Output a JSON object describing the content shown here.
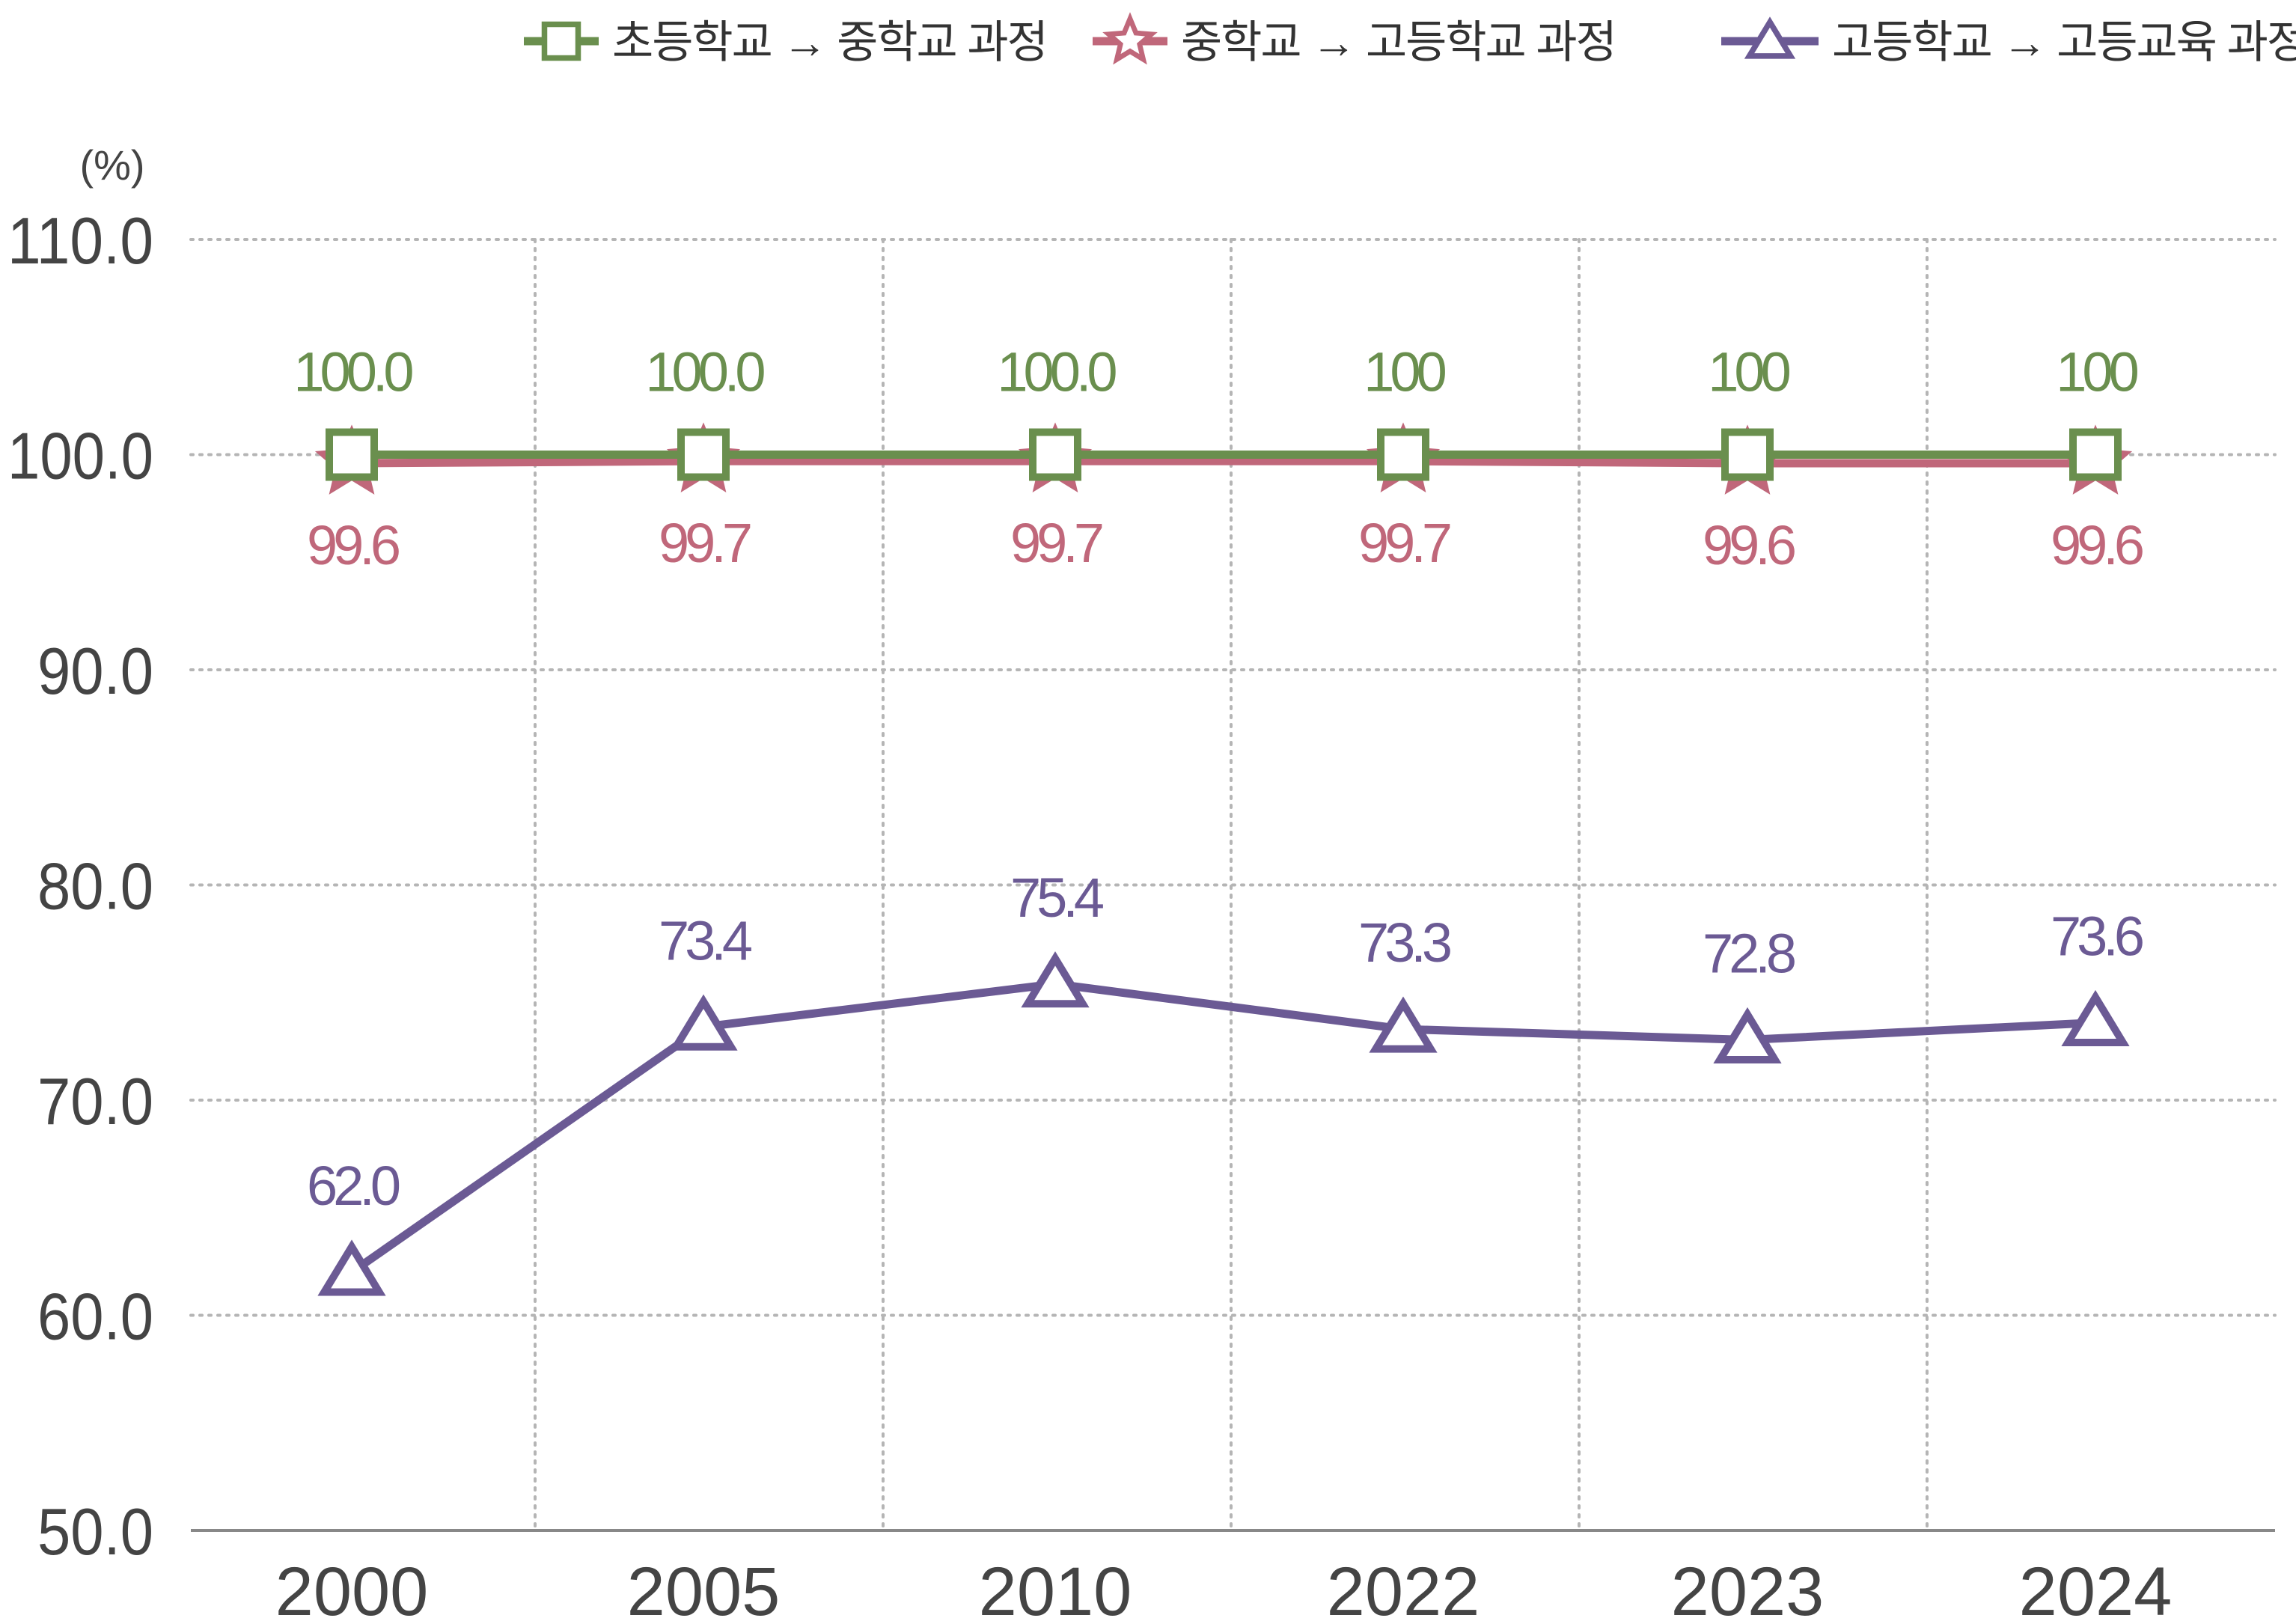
{
  "chart_data": {
    "type": "line",
    "unit_label": "(%)",
    "categories": [
      "2000",
      "2005",
      "2010",
      "2022",
      "2023",
      "2024"
    ],
    "ylim": [
      50.0,
      110.0
    ],
    "y_ticks": [
      "110.0",
      "100.0",
      "90.0",
      "80.0",
      "70.0",
      "60.0",
      "50.0"
    ],
    "y_tick_values": [
      110,
      100,
      90,
      80,
      70,
      60,
      50
    ],
    "grid": true,
    "legend_position": "top-right",
    "series": [
      {
        "name": "초등학교 → 중학교 과정",
        "color": "#6a8f4e",
        "marker": "square",
        "values": [
          100.0,
          100.0,
          100.0,
          100,
          100,
          100
        ],
        "labels": [
          "100.0",
          "100.0",
          "100.0",
          "100",
          "100",
          "100"
        ]
      },
      {
        "name": "중학교 → 고등학교 과정",
        "color": "#c0677a",
        "marker": "star",
        "values": [
          99.6,
          99.7,
          99.7,
          99.7,
          99.6,
          99.6
        ],
        "labels": [
          "99.6",
          "99.7",
          "99.7",
          "99.7",
          "99.6",
          "99.6"
        ]
      },
      {
        "name": "고등학교 → 고등교육 과정",
        "color": "#6b5a94",
        "marker": "triangle",
        "values": [
          62.0,
          73.4,
          75.4,
          73.3,
          72.8,
          73.6
        ],
        "labels": [
          "62.0",
          "73.4",
          "75.4",
          "73.3",
          "72.8",
          "73.6"
        ]
      }
    ]
  }
}
